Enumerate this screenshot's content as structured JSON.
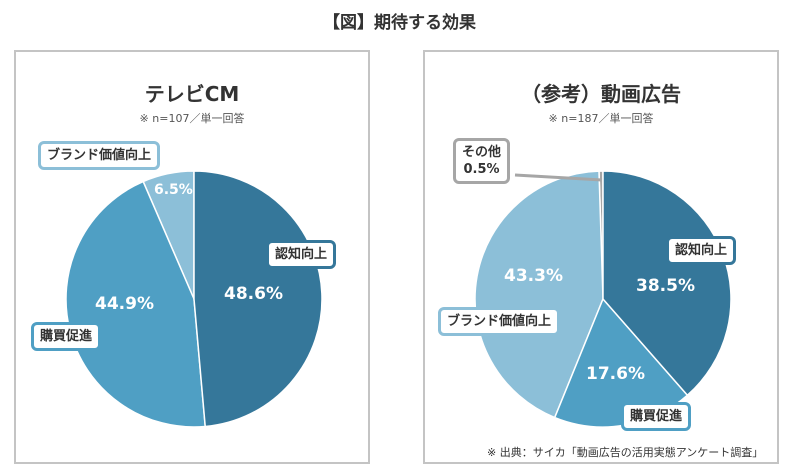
{
  "title": "【図】期待する効果",
  "footnote": "※ 出典：サイカ「動画広告の活用実態アンケート調査」",
  "chart_data": [
    {
      "type": "pie",
      "title": "テレビCM",
      "subtitle": "※ n=107／単一回答",
      "categories": [
        "認知向上",
        "購買促進",
        "ブランド価値向上"
      ],
      "values": [
        48.6,
        44.9,
        6.5
      ],
      "labels": [
        "48.6%",
        "44.9%",
        "6.5%"
      ],
      "colors": [
        "#35779a",
        "#4f9fc4",
        "#8cbfd8"
      ]
    },
    {
      "type": "pie",
      "title": "（参考）動画広告",
      "subtitle": "※ n=187／単一回答",
      "categories": [
        "認知向上",
        "購買促進",
        "ブランド価値向上",
        "その他"
      ],
      "values": [
        38.5,
        17.6,
        43.3,
        0.5
      ],
      "labels": [
        "38.5%",
        "17.6%",
        "43.3%",
        "0.5%"
      ],
      "colors": [
        "#35779a",
        "#4f9fc4",
        "#8cbfd8",
        "#a6a6a6"
      ]
    }
  ]
}
